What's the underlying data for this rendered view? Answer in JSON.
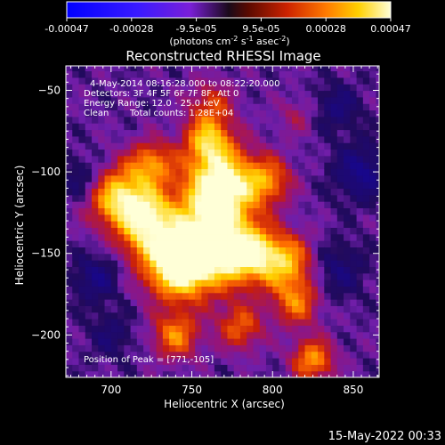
{
  "chart_data": {
    "type": "heatmap",
    "title": "Reconstructed RHESSI Image",
    "xlabel": "Heliocentric X (arcsec)",
    "ylabel": "Heliocentric Y (arcsec)",
    "xlim": [
      672,
      866
    ],
    "ylim": [
      -226,
      -35
    ],
    "x_ticks": [
      700,
      750,
      800,
      850
    ],
    "y_ticks": [
      -50,
      -100,
      -150,
      -200
    ],
    "colorbar": {
      "tick_labels": [
        "-0.00047",
        "-0.00028",
        "-9.5e-05",
        "9.5e-05",
        "0.00028",
        "0.00047"
      ],
      "unit_label_parts": [
        "(photons cm",
        "-2",
        " s",
        "-1",
        " asec",
        "-2",
        ")"
      ]
    },
    "annotations": [
      "4-May-2014 08:16:28.000 to 08:22:20.000",
      "Detectors: 3F 4F 5F 6F 7F 8F, Att 0",
      "Energy Range: 12.0 - 25.0 keV",
      "Clean",
      "Total counts: 1.28E+04"
    ],
    "peak_label": "Position of Peak = [771,-105]",
    "peak": [
      771,
      -105
    ],
    "blobs": [
      {
        "x": 768,
        "y": -108,
        "intensity": 1.0,
        "sigma": 16
      },
      {
        "x": 758,
        "y": -145,
        "intensity": 0.95,
        "sigma": 18
      },
      {
        "x": 740,
        "y": -157,
        "intensity": 0.85,
        "sigma": 14
      },
      {
        "x": 705,
        "y": -116,
        "intensity": 0.85,
        "sigma": 13
      },
      {
        "x": 725,
        "y": -125,
        "intensity": 0.55,
        "sigma": 10
      },
      {
        "x": 740,
        "y": -200,
        "intensity": 0.55,
        "sigma": 10
      },
      {
        "x": 785,
        "y": -150,
        "intensity": 0.7,
        "sigma": 12
      },
      {
        "x": 808,
        "y": -155,
        "intensity": 0.65,
        "sigma": 12
      },
      {
        "x": 815,
        "y": -180,
        "intensity": 0.5,
        "sigma": 10
      },
      {
        "x": 825,
        "y": -215,
        "intensity": 0.6,
        "sigma": 9
      },
      {
        "x": 725,
        "y": -95,
        "intensity": 0.55,
        "sigma": 10
      },
      {
        "x": 760,
        "y": -80,
        "intensity": 0.6,
        "sigma": 10
      },
      {
        "x": 762,
        "y": -58,
        "intensity": 0.35,
        "sigma": 10
      },
      {
        "x": 718,
        "y": -140,
        "intensity": 0.4,
        "sigma": 10
      },
      {
        "x": 798,
        "y": -105,
        "intensity": 0.45,
        "sigma": 10
      },
      {
        "x": 780,
        "y": -195,
        "intensity": 0.45,
        "sigma": 10
      },
      {
        "x": 815,
        "y": -65,
        "intensity": 0.2,
        "sigma": 8
      },
      {
        "x": 683,
        "y": -105,
        "intensity": -0.25,
        "sigma": 10
      },
      {
        "x": 690,
        "y": -165,
        "intensity": -0.3,
        "sigma": 10
      },
      {
        "x": 855,
        "y": -100,
        "intensity": -0.35,
        "sigma": 12
      },
      {
        "x": 840,
        "y": -160,
        "intensity": -0.25,
        "sigma": 12
      },
      {
        "x": 840,
        "y": -60,
        "intensity": -0.25,
        "sigma": 10
      },
      {
        "x": 700,
        "y": -200,
        "intensity": -0.2,
        "sigma": 10
      }
    ]
  },
  "footer": {
    "date": "15-May-2022 00:33"
  }
}
